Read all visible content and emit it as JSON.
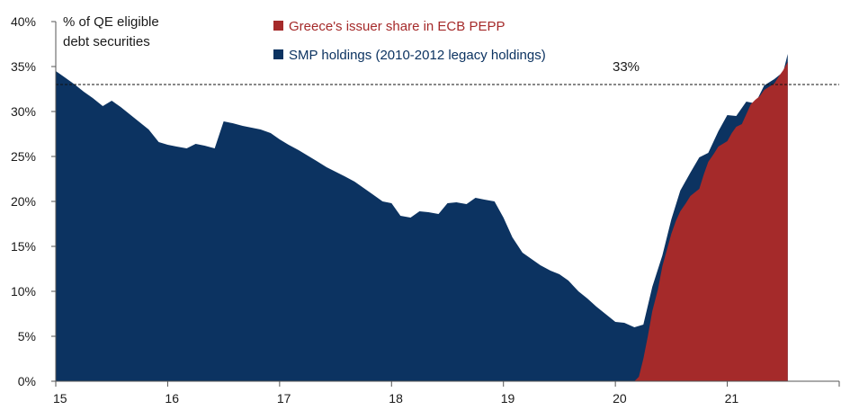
{
  "chart_data": {
    "type": "area",
    "ylabel": "% of QE eligible debt securities",
    "ylabel_lines": [
      "% of QE eligible",
      "debt securities"
    ],
    "ylim": [
      0,
      40
    ],
    "yticks": [
      "0%",
      "5%",
      "10%",
      "15%",
      "20%",
      "25%",
      "30%",
      "35%",
      "40%"
    ],
    "ytick_values": [
      0,
      5,
      10,
      15,
      20,
      25,
      30,
      35,
      40
    ],
    "xlim": [
      15,
      22
    ],
    "xticks": [
      "15",
      "16",
      "17",
      "18",
      "19",
      "20",
      "21"
    ],
    "xtick_values": [
      15,
      16,
      17,
      18,
      19,
      20,
      21
    ],
    "grid": false,
    "legend_position": "top",
    "reference_line": {
      "value": 33,
      "label": "33%",
      "style": "dashed"
    },
    "series": [
      {
        "name": "Greece's issuer share in ECB PEPP",
        "color": "#a52a2a",
        "x": [
          15.0,
          20.17,
          20.21,
          20.25,
          20.29,
          20.33,
          20.38,
          20.42,
          20.46,
          20.5,
          20.54,
          20.58,
          20.63,
          20.67,
          20.71,
          20.75,
          20.79,
          20.83,
          20.88,
          20.92,
          20.96,
          21.0,
          21.04,
          21.08,
          21.13,
          21.17,
          21.21,
          21.25,
          21.29,
          21.33,
          21.38,
          21.42,
          21.46,
          21.5,
          21.54
        ],
        "values": [
          0,
          0,
          0.5,
          2.5,
          5.0,
          7.8,
          10.2,
          12.8,
          14.6,
          16.4,
          17.8,
          18.9,
          19.8,
          20.6,
          21.0,
          21.4,
          23.0,
          24.4,
          25.3,
          26.1,
          26.4,
          26.7,
          27.6,
          28.3,
          28.6,
          29.7,
          30.8,
          31.3,
          31.7,
          32.4,
          32.8,
          33.1,
          33.9,
          34.6,
          35.5
        ]
      },
      {
        "name": "SMP holdings (2010-2012 legacy holdings)",
        "color": "#0c3361",
        "x": [
          15.0,
          15.08,
          15.17,
          15.25,
          15.33,
          15.42,
          15.5,
          15.58,
          15.67,
          15.75,
          15.83,
          15.92,
          16.0,
          16.08,
          16.17,
          16.25,
          16.33,
          16.42,
          16.5,
          16.58,
          16.67,
          16.75,
          16.83,
          16.92,
          17.0,
          17.08,
          17.17,
          17.25,
          17.33,
          17.42,
          17.5,
          17.58,
          17.67,
          17.75,
          17.83,
          17.92,
          18.0,
          18.08,
          18.17,
          18.25,
          18.33,
          18.42,
          18.5,
          18.58,
          18.67,
          18.75,
          18.83,
          18.92,
          19.0,
          19.08,
          19.17,
          19.25,
          19.33,
          19.42,
          19.5,
          19.58,
          19.67,
          19.75,
          19.83,
          19.92,
          20.0,
          20.08,
          20.17,
          20.25,
          20.33,
          20.42,
          20.5,
          20.58,
          20.67,
          20.75,
          20.83,
          20.92,
          21.0,
          21.08,
          21.17,
          21.25,
          21.33,
          21.42,
          21.5,
          21.54
        ],
        "values": [
          34.5,
          33.8,
          33.0,
          32.2,
          31.5,
          30.6,
          31.2,
          30.5,
          29.6,
          28.8,
          28.0,
          26.6,
          26.3,
          26.1,
          25.9,
          26.4,
          26.2,
          25.9,
          28.9,
          28.7,
          28.4,
          28.2,
          28.0,
          27.6,
          26.9,
          26.3,
          25.7,
          25.1,
          24.5,
          23.8,
          23.3,
          22.8,
          22.2,
          21.5,
          20.8,
          20.0,
          19.8,
          18.4,
          18.2,
          18.9,
          18.8,
          18.6,
          19.8,
          19.9,
          19.7,
          20.4,
          20.2,
          20.0,
          18.2,
          16.0,
          14.3,
          13.6,
          12.9,
          12.3,
          11.9,
          11.2,
          10.0,
          9.2,
          8.3,
          7.4,
          6.6,
          6.5,
          6.0,
          6.3,
          10.5,
          14.0,
          18.0,
          21.2,
          23.2,
          24.9,
          25.4,
          27.8,
          29.6,
          29.5,
          31.1,
          30.9,
          32.9,
          33.6,
          34.4,
          36.4
        ]
      }
    ]
  }
}
